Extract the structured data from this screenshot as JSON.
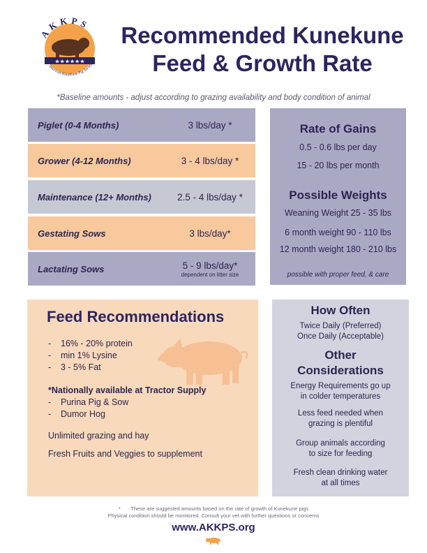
{
  "logo": {
    "letters": "AKKPS",
    "tagline": "American KuneKune Pig Society",
    "stars": "★★★★★★",
    "colors": {
      "ring": "#f3a24a",
      "ribbon": "#2b2560",
      "pig": "#5a3320"
    }
  },
  "title": {
    "line1": "Recommended Kunekune",
    "line2": "Feed & Growth Rate"
  },
  "note": "*Baseline amounts  - adjust according to grazing availability and body condition of animal",
  "feed_table": [
    {
      "stage": "Piglet (0-4 Months)",
      "amount": "3 lbs/day *",
      "sub": ""
    },
    {
      "stage": "Grower (4-12 Months)",
      "amount": "3 - 4 lbs/day *",
      "sub": ""
    },
    {
      "stage": "Maintenance (12+ Months)",
      "amount": "2.5 - 4 lbs/day *",
      "sub": ""
    },
    {
      "stage": "Gestating Sows",
      "amount": "3 lbs/day*",
      "sub": ""
    },
    {
      "stage": "Lactating Sows",
      "amount": "5 - 9 lbs/day*",
      "sub": "dependent on litter size"
    }
  ],
  "gains": {
    "heading": "Rate of Gains",
    "lines": [
      "0.5 - 0.6 lbs per day",
      "15 - 20 lbs per month"
    ],
    "weights_heading": "Possible Weights",
    "weights": [
      "Weaning Weight 25 - 35 lbs",
      "6 month weight 90 - 110 lbs",
      "12 month weight 180 - 210 lbs"
    ],
    "footnote": "possible with proper feed, & care"
  },
  "feed_recs": {
    "heading": "Feed Recommendations",
    "items": [
      "16% - 20% protein",
      "min 1% Lysine",
      "3 - 5% Fat"
    ],
    "national_heading": "*Nationally available at Tractor Supply",
    "national_items": [
      "Purina Pig & Sow",
      "Dumor Hog"
    ],
    "extra": [
      "Unlimited grazing and hay",
      "Fresh Fruits and Veggies to supplement"
    ]
  },
  "often": {
    "heading": "How Often",
    "lines": [
      "Twice Daily (Preferred)",
      "Once Daily (Acceptable)"
    ],
    "other_heading_1": "Other",
    "other_heading_2": "Considerations",
    "considerations": [
      [
        "Energy Requirements go up",
        "in colder temperatures"
      ],
      [
        "Less feed needed when",
        "grazing is plentiful"
      ],
      [
        "Group animals according",
        "to size for feeding"
      ],
      [
        "Fresh clean drinking water",
        "at all times"
      ]
    ]
  },
  "footer": {
    "star": "*",
    "line1": "These are suggested amounts based on the rate of growth of Kunekune pigs",
    "line2": "Physical condition should be monitored. Consult your vet with further questions or concerns",
    "url": "www.AKKPS.org"
  },
  "colors": {
    "navy": "#2b2560",
    "lavender": "#aaa9c4",
    "peach": "#f8c99d",
    "grey": "#c6c8d4",
    "light_peach": "#f9d9bb",
    "light_grey": "#d2d3de"
  }
}
